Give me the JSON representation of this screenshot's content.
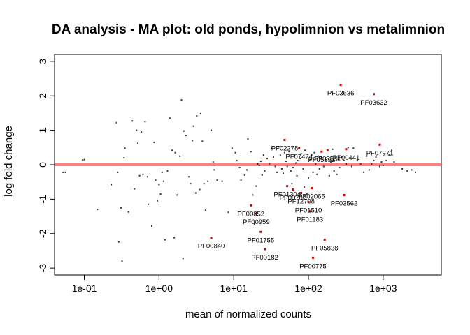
{
  "chart_data": {
    "type": "scatter",
    "title": "DA analysis - MA plot: old ponds, hypolimnion vs metalimnion",
    "xlabel": "mean of normalized counts",
    "ylabel": "log fold change",
    "x_scale": "log10",
    "xlim": [
      0.04,
      6000
    ],
    "ylim": [
      -3.2,
      3.2
    ],
    "x_ticks": [
      {
        "value": 0.1,
        "label": "1e-01"
      },
      {
        "value": 1,
        "label": "1e+00"
      },
      {
        "value": 10,
        "label": "1e+01"
      },
      {
        "value": 100,
        "label": "1e+02"
      },
      {
        "value": 1000,
        "label": "1e+03"
      }
    ],
    "y_ticks": [
      {
        "value": -3,
        "label": "-3"
      },
      {
        "value": -2,
        "label": "-2"
      },
      {
        "value": -1,
        "label": "-1"
      },
      {
        "value": 0,
        "label": "0"
      },
      {
        "value": 1,
        "label": "1"
      },
      {
        "value": 2,
        "label": "2"
      },
      {
        "value": 3,
        "label": "3"
      }
    ],
    "reference_line": {
      "y": 0,
      "color": "#ff8080"
    },
    "colors": {
      "significant": "#cc0000",
      "background": "#333333"
    },
    "points": [
      [
        0.052,
        -0.22
      ],
      [
        0.056,
        -0.22
      ],
      [
        0.095,
        0.14
      ],
      [
        0.1,
        0.15
      ],
      [
        0.15,
        -1.3
      ],
      [
        0.23,
        -0.58
      ],
      [
        0.27,
        1.22
      ],
      [
        0.28,
        -0.22
      ],
      [
        0.29,
        -2.24
      ],
      [
        0.31,
        -1.25
      ],
      [
        0.32,
        -2.8
      ],
      [
        0.34,
        0.2
      ],
      [
        0.35,
        0.48
      ],
      [
        0.39,
        -1.37
      ],
      [
        0.44,
        1.27
      ],
      [
        0.47,
        -0.7
      ],
      [
        0.5,
        1.0
      ],
      [
        0.52,
        0.62
      ],
      [
        0.55,
        -0.32
      ],
      [
        0.58,
        0.95
      ],
      [
        0.61,
        -0.28
      ],
      [
        0.65,
        1.25
      ],
      [
        0.7,
        -0.35
      ],
      [
        0.72,
        -1.15
      ],
      [
        0.8,
        -1.78
      ],
      [
        0.86,
        0.65
      ],
      [
        0.9,
        -0.45
      ],
      [
        0.95,
        -1.05
      ],
      [
        1.0,
        -0.58
      ],
      [
        1.05,
        -0.85
      ],
      [
        1.1,
        -0.22
      ],
      [
        1.15,
        -0.48
      ],
      [
        1.2,
        -2.18
      ],
      [
        1.3,
        -0.18
      ],
      [
        1.4,
        1.35
      ],
      [
        1.5,
        0.42
      ],
      [
        1.6,
        -2.12
      ],
      [
        1.65,
        0.35
      ],
      [
        1.75,
        -0.88
      ],
      [
        1.9,
        0.25
      ],
      [
        2.0,
        1.88
      ],
      [
        2.1,
        -2.72
      ],
      [
        2.15,
        0.98
      ],
      [
        2.3,
        0.85
      ],
      [
        2.5,
        -0.35
      ],
      [
        2.65,
        -0.55
      ],
      [
        2.8,
        0.7
      ],
      [
        2.9,
        1.12
      ],
      [
        3.1,
        -0.82
      ],
      [
        3.2,
        1.42
      ],
      [
        3.5,
        -0.72
      ],
      [
        3.6,
        1.48
      ],
      [
        3.8,
        0.68
      ],
      [
        4.0,
        -0.55
      ],
      [
        4.2,
        -1.32
      ],
      [
        4.5,
        -0.48
      ],
      [
        5.0,
        1.0
      ],
      [
        5.3,
        0.08
      ],
      [
        5.5,
        -0.15
      ],
      [
        6.0,
        -0.45
      ],
      [
        7.0,
        -0.48
      ],
      [
        8.5,
        -1.38
      ],
      [
        9.5,
        0.48
      ],
      [
        10.5,
        0.35
      ],
      [
        11,
        0.12
      ],
      [
        12,
        -0.08
      ],
      [
        12.5,
        -0.45
      ],
      [
        14,
        -0.3
      ],
      [
        15,
        -0.15
      ],
      [
        15.5,
        0.75
      ],
      [
        17,
        0.38
      ],
      [
        18,
        -0.88
      ],
      [
        19,
        -1.72
      ],
      [
        20,
        -0.62
      ],
      [
        21,
        0.02
      ],
      [
        22,
        -0.02
      ],
      [
        23,
        0.1
      ],
      [
        24,
        -0.3
      ],
      [
        25,
        0.28
      ],
      [
        26,
        -0.18
      ],
      [
        28,
        0.18
      ],
      [
        30,
        0.02
      ],
      [
        32,
        0.48
      ],
      [
        34,
        0.22
      ],
      [
        36,
        -0.05
      ],
      [
        38,
        -0.22
      ],
      [
        40,
        0.52
      ],
      [
        42,
        0.28
      ],
      [
        44,
        -0.12
      ],
      [
        46,
        -0.25
      ],
      [
        48,
        0.35
      ],
      [
        50,
        0.1
      ],
      [
        52,
        -0.05
      ],
      [
        55,
        0.38
      ],
      [
        58,
        -0.18
      ],
      [
        60,
        -0.55
      ],
      [
        62,
        -0.08
      ],
      [
        65,
        0.28
      ],
      [
        68,
        0.05
      ],
      [
        70,
        -0.32
      ],
      [
        72,
        0.12
      ],
      [
        75,
        -0.88
      ],
      [
        78,
        0.18
      ],
      [
        80,
        0.32
      ],
      [
        85,
        -0.12
      ],
      [
        88,
        -0.65
      ],
      [
        90,
        0.42
      ],
      [
        95,
        -0.85
      ],
      [
        100,
        -0.38
      ],
      [
        105,
        0.15
      ],
      [
        110,
        0.28
      ],
      [
        115,
        -0.22
      ],
      [
        120,
        0.35
      ],
      [
        125,
        0.02
      ],
      [
        130,
        -0.28
      ],
      [
        135,
        0.25
      ],
      [
        140,
        -0.12
      ],
      [
        150,
        0.22
      ],
      [
        160,
        -0.05
      ],
      [
        170,
        0.12
      ],
      [
        180,
        0.42
      ],
      [
        190,
        -0.32
      ],
      [
        200,
        0.08
      ],
      [
        210,
        0.45
      ],
      [
        220,
        -0.18
      ],
      [
        230,
        0.2
      ],
      [
        240,
        -0.28
      ],
      [
        250,
        0.15
      ],
      [
        260,
        -0.08
      ],
      [
        280,
        0.22
      ],
      [
        300,
        0.12
      ],
      [
        320,
        0.02
      ],
      [
        340,
        0.5
      ],
      [
        360,
        0.2
      ],
      [
        380,
        -0.05
      ],
      [
        400,
        0.48
      ],
      [
        450,
        0.12
      ],
      [
        500,
        0.02
      ],
      [
        550,
        -0.22
      ],
      [
        600,
        0.25
      ],
      [
        650,
        -0.15
      ],
      [
        700,
        0.02
      ],
      [
        750,
        0.12
      ],
      [
        800,
        0.22
      ],
      [
        900,
        -0.05
      ],
      [
        950,
        0.08
      ],
      [
        1000,
        -0.02
      ],
      [
        1100,
        0.12
      ],
      [
        1200,
        0.28
      ],
      [
        1300,
        0.42
      ],
      [
        1400,
        0.08
      ],
      [
        1800,
        -0.12
      ],
      [
        2100,
        -0.18
      ],
      [
        2400,
        -0.15
      ],
      [
        2700,
        -0.22
      ]
    ],
    "significant_points": [
      {
        "x": 5.0,
        "y": -2.12,
        "label": "PF00840"
      },
      {
        "x": 17.0,
        "y": -1.18,
        "label": "PF00852"
      },
      {
        "x": 20.0,
        "y": -1.42,
        "label": "PF00959"
      },
      {
        "x": 23.0,
        "y": -1.95,
        "label": "PF01755"
      },
      {
        "x": 26.0,
        "y": -2.45,
        "label": "PF00182"
      },
      {
        "x": 48.0,
        "y": 0.72,
        "label": "PF02278"
      },
      {
        "x": 52.0,
        "y": -0.62,
        "label": "PF01304"
      },
      {
        "x": 62.0,
        "y": -0.72,
        "label": "PF00702"
      },
      {
        "x": 75.0,
        "y": 0.48,
        "label": "PF07474"
      },
      {
        "x": 80.0,
        "y": -0.82,
        "label": "PF12708"
      },
      {
        "x": 100.0,
        "y": -1.08,
        "label": "PF01510"
      },
      {
        "x": 105.0,
        "y": -1.35,
        "label": "PF01183"
      },
      {
        "x": 110.0,
        "y": -0.68,
        "label": "PF02065"
      },
      {
        "x": 115.0,
        "y": -2.7,
        "label": "PF00775"
      },
      {
        "x": 150.0,
        "y": 0.38,
        "label": "PF05592"
      },
      {
        "x": 165.0,
        "y": -2.18,
        "label": "PF05838"
      },
      {
        "x": 180.0,
        "y": 0.42,
        "label": "PF08531"
      },
      {
        "x": 270.0,
        "y": 2.32,
        "label": "PF03636"
      },
      {
        "x": 300.0,
        "y": -0.88,
        "label": "PF03562"
      },
      {
        "x": 320.0,
        "y": 0.45,
        "label": "PF00441"
      },
      {
        "x": 750.0,
        "y": 2.05,
        "label": "PF03632"
      },
      {
        "x": 900.0,
        "y": 0.58,
        "label": "PF07971"
      }
    ]
  }
}
